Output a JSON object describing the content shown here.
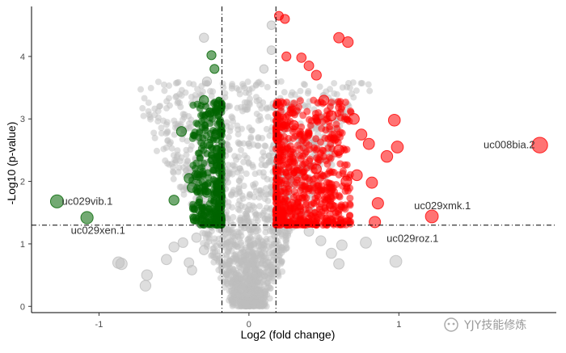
{
  "chart_data": {
    "type": "scatter",
    "title": "",
    "xlabel": "Log2 (fold change)",
    "ylabel": "-Log10 (p-value)",
    "xlim": [
      -1.45,
      2.05
    ],
    "ylim": [
      -0.1,
      4.8
    ],
    "x_ticks": [
      -1,
      0,
      1
    ],
    "y_ticks": [
      0,
      1,
      2,
      3,
      4
    ],
    "thresholds": {
      "x": [
        -0.18,
        0.18
      ],
      "y": 1.3
    },
    "grid": false,
    "legend": "none",
    "colors": {
      "up": "#ff0000",
      "down": "#006400",
      "ns": "#bebebe"
    },
    "series": [
      {
        "group": "down",
        "points": [
          [
            -1.28,
            1.68
          ],
          [
            -1.08,
            1.42
          ],
          [
            -0.5,
            1.7
          ],
          [
            -0.45,
            2.8
          ],
          [
            -0.25,
            4.02
          ],
          [
            -0.23,
            3.8
          ],
          [
            -0.3,
            3.3
          ],
          [
            -0.26,
            3.1
          ],
          [
            -0.22,
            2.75
          ],
          [
            -0.21,
            2.5
          ],
          [
            -0.24,
            2.35
          ],
          [
            -0.27,
            2.6
          ],
          [
            -0.35,
            2.1
          ],
          [
            -0.33,
            1.55
          ],
          [
            -0.36,
            1.4
          ],
          [
            -0.31,
            1.35
          ],
          [
            -0.28,
            1.82
          ],
          [
            -0.4,
            2.05
          ],
          [
            -0.38,
            1.9
          ],
          [
            -0.2,
            1.95
          ],
          [
            -0.19,
            1.6
          ]
        ]
      },
      {
        "group": "up",
        "points": [
          [
            1.94,
            2.58
          ],
          [
            1.22,
            1.44
          ],
          [
            0.2,
            4.65
          ],
          [
            0.24,
            4.6
          ],
          [
            0.6,
            4.3
          ],
          [
            0.66,
            4.23
          ],
          [
            0.25,
            4.0
          ],
          [
            0.35,
            3.98
          ],
          [
            0.4,
            3.85
          ],
          [
            0.45,
            3.7
          ],
          [
            0.5,
            3.3
          ],
          [
            0.55,
            3.05
          ],
          [
            0.7,
            3.0
          ],
          [
            0.75,
            2.75
          ],
          [
            0.97,
            2.98
          ],
          [
            0.99,
            2.55
          ],
          [
            0.8,
            2.6
          ],
          [
            0.6,
            2.5
          ],
          [
            0.92,
            2.4
          ],
          [
            0.72,
            2.1
          ],
          [
            0.65,
            2.0
          ],
          [
            0.82,
            1.98
          ],
          [
            0.86,
            1.65
          ],
          [
            0.84,
            1.35
          ],
          [
            0.3,
            2.9
          ],
          [
            0.45,
            2.2
          ],
          [
            0.55,
            1.6
          ]
        ]
      },
      {
        "group": "ns",
        "points": [
          [
            -0.85,
            0.68
          ],
          [
            -0.87,
            0.7
          ],
          [
            -0.68,
            0.5
          ],
          [
            -0.69,
            0.33
          ],
          [
            -0.55,
            0.75
          ],
          [
            -0.5,
            0.95
          ],
          [
            -0.44,
            1.02
          ],
          [
            -0.4,
            0.7
          ],
          [
            -0.38,
            0.58
          ],
          [
            -0.35,
            1.1
          ],
          [
            -0.3,
            0.9
          ],
          [
            0.4,
            1.2
          ],
          [
            0.48,
            1.05
          ],
          [
            0.55,
            0.85
          ],
          [
            0.6,
            0.68
          ],
          [
            0.62,
            0.98
          ],
          [
            0.98,
            0.72
          ],
          [
            0.78,
            1.02
          ],
          [
            -0.3,
            4.3
          ],
          [
            -0.28,
            3.6
          ],
          [
            0.15,
            4.5
          ],
          [
            0.15,
            4.1
          ],
          [
            0.1,
            3.8
          ]
        ]
      }
    ],
    "annotations": [
      {
        "text": "uc008bia.2",
        "x": 1.94,
        "y": 2.58
      },
      {
        "text": "uc029vib.1",
        "x": -1.28,
        "y": 1.68
      },
      {
        "text": "uc029xen.1",
        "x": -1.08,
        "y": 1.42
      },
      {
        "text": "uc029xmk.1",
        "x": 1.22,
        "y": 1.44
      },
      {
        "text": "uc029roz.1",
        "x": 1.22,
        "y": 1.3
      }
    ]
  },
  "watermark": "YJY技能修炼"
}
